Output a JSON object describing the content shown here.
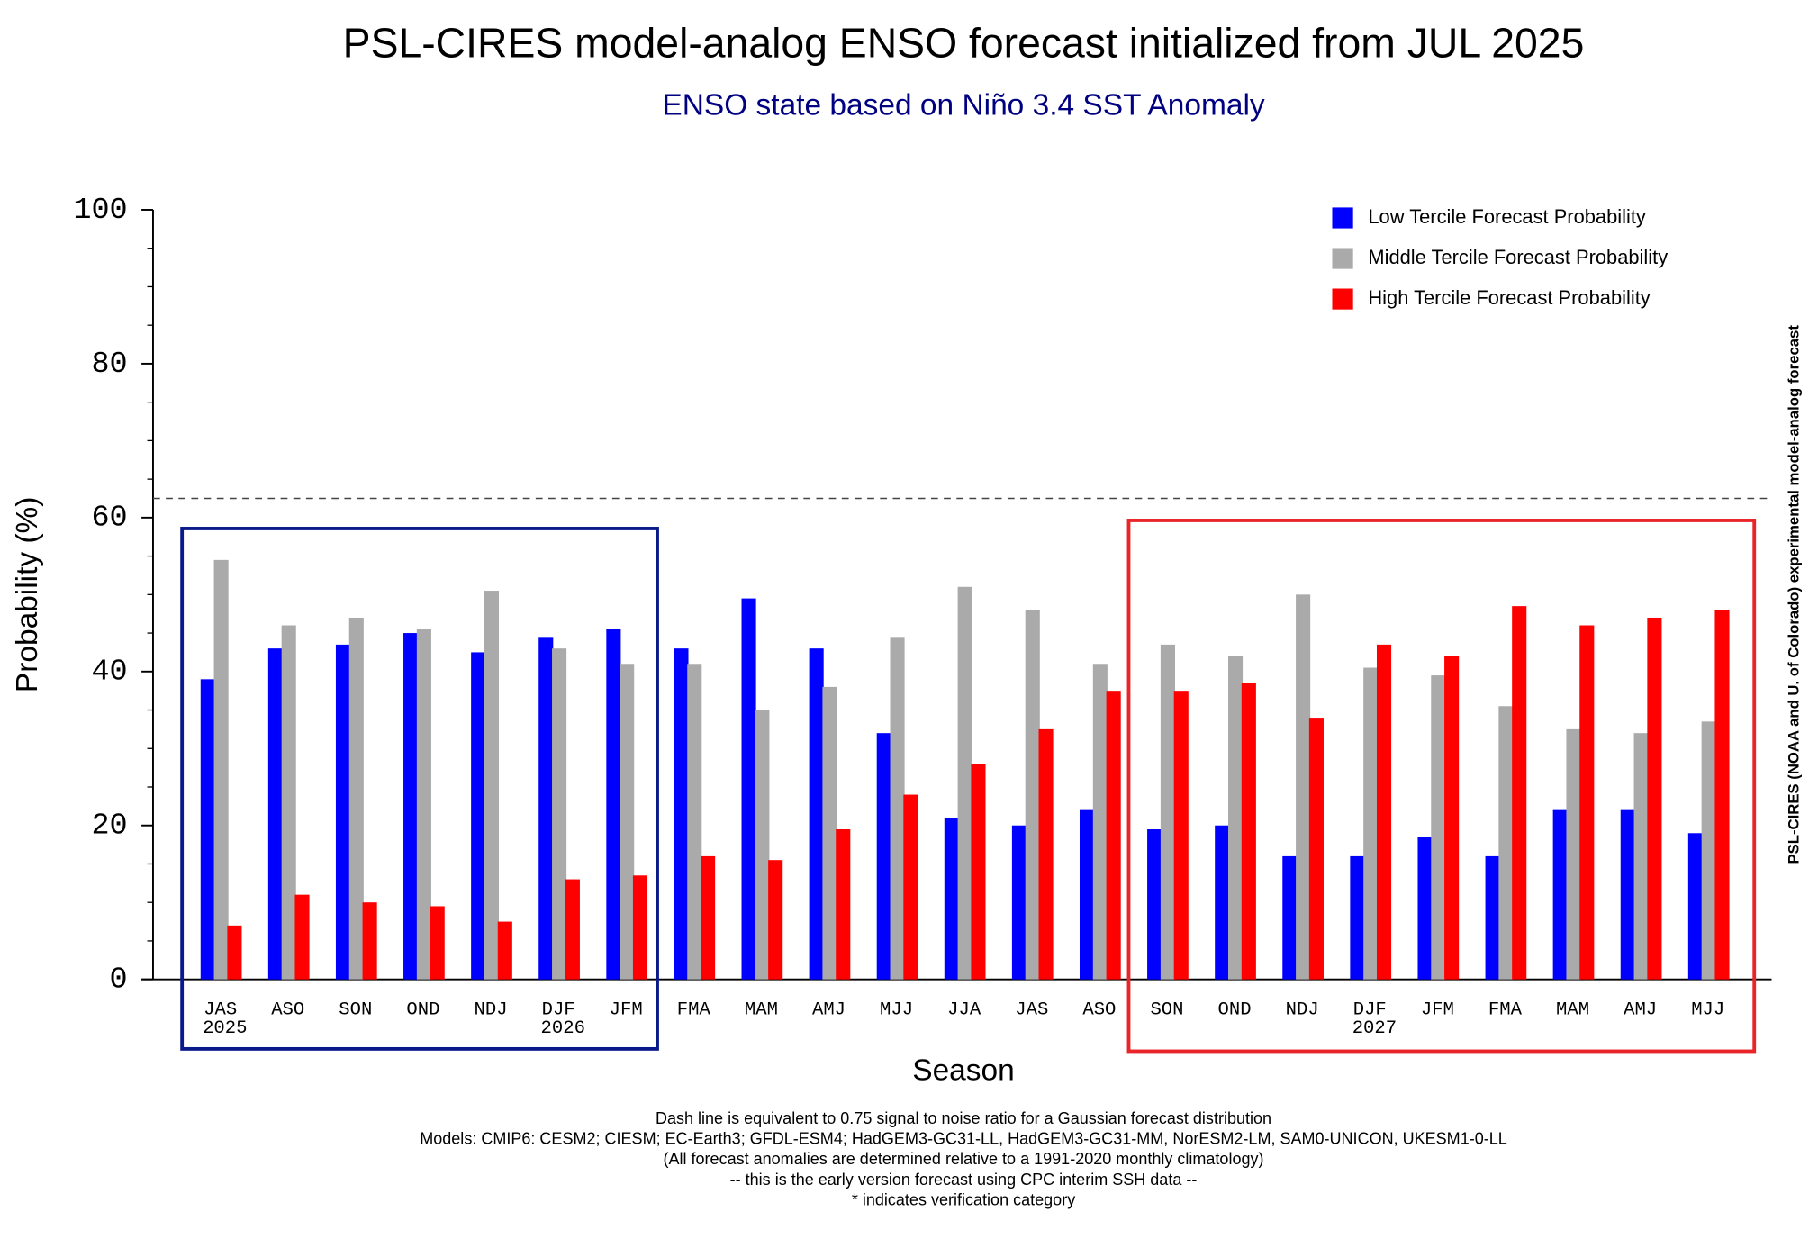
{
  "chart_data": {
    "type": "bar",
    "title": "PSL-CIRES model-analog ENSO forecast initialized from JUL 2025",
    "subtitle": "ENSO state based on Niño 3.4 SST Anomaly",
    "x_label": "Season",
    "y_label": "Probability (%)",
    "side_note": "PSL-CIRES (NOAA and U. of Colorado) experimental model-analog forecast",
    "footnotes": [
      "Dash line is equivalent to 0.75 signal to noise ratio for a Gaussian forecast distribution",
      "Models: CMIP6: CESM2; CIESM; EC-Earth3; GFDL-ESM4; HadGEM3-GC31-LL, HadGEM3-GC31-MM, NorESM2-LM, SAM0-UNICON, UKESM1-0-LL",
      "(All forecast anomalies are determined relative to a 1991-2020 monthly climatology)",
      "-- this is the early version forecast using CPC interim SSH data --",
      "* indicates verification category"
    ],
    "categories": [
      "JAS",
      "ASO",
      "SON",
      "OND",
      "NDJ",
      "DJF",
      "JFM",
      "FMA",
      "MAM",
      "AMJ",
      "MJJ",
      "JJA",
      "JAS",
      "ASO",
      "SON",
      "OND",
      "NDJ",
      "DJF",
      "JFM",
      "FMA",
      "MAM",
      "AMJ",
      "MJJ"
    ],
    "year_labels": [
      "2025",
      null,
      null,
      null,
      null,
      "2026",
      null,
      null,
      null,
      null,
      null,
      null,
      null,
      null,
      null,
      null,
      null,
      "2027",
      null,
      null,
      null,
      null,
      null
    ],
    "series": [
      {
        "name": "Low Tercile Forecast Probability",
        "color": "#0000ff",
        "values": [
          39,
          43,
          43.5,
          45,
          42.5,
          44.5,
          45.5,
          43,
          49.5,
          43,
          32,
          21,
          20,
          22,
          19.5,
          20,
          16,
          16,
          18.5,
          16,
          22,
          22,
          19
        ]
      },
      {
        "name": "Middle Tercile Forecast Probability",
        "color": "#aaaaaa",
        "values": [
          54.5,
          46,
          47,
          45.5,
          50.5,
          43,
          41,
          41,
          35,
          38,
          44.5,
          51,
          48,
          41,
          43.5,
          42,
          50,
          40.5,
          39.5,
          35.5,
          32.5,
          32,
          33.5
        ]
      },
      {
        "name": "High Tercile Forecast Probability",
        "color": "#ff0000",
        "values": [
          7,
          11,
          10,
          9.5,
          7.5,
          13,
          13.5,
          16,
          15.5,
          19.5,
          24,
          28,
          32.5,
          37.5,
          37.5,
          38.5,
          34,
          43.5,
          42,
          48.5,
          46,
          47,
          48
        ]
      }
    ],
    "ylim": [
      0,
      100
    ],
    "yticks": [
      0,
      20,
      40,
      60,
      80,
      100
    ],
    "threshold": 62.5,
    "legend": "upper right"
  }
}
